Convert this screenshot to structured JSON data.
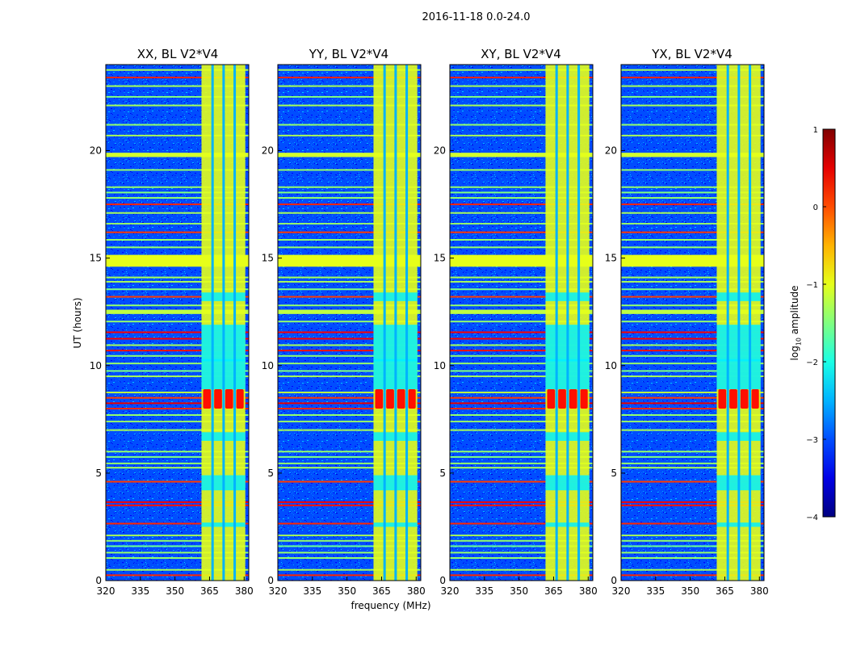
{
  "chart_data": {
    "type": "heatmap",
    "suptitle": "2016-11-18 0.0-24.0",
    "xlabel": "frequency (MHz)",
    "ylabel": "UT (hours)",
    "xlim": [
      320,
      382
    ],
    "ylim": [
      0,
      24
    ],
    "xticks": [
      320,
      335,
      350,
      365,
      380
    ],
    "xtick_labels": [
      "320",
      "335",
      "350",
      "365",
      "380"
    ],
    "yticks": [
      0,
      5,
      10,
      15,
      20
    ],
    "ytick_labels": [
      "0",
      "5",
      "10",
      "15",
      "20"
    ],
    "panels": [
      {
        "title": "XX, BL V2*V4"
      },
      {
        "title": "YY, BL V2*V4"
      },
      {
        "title": "XY, BL V2*V4"
      },
      {
        "title": "YX, BL V2*V4"
      }
    ],
    "colorbar": {
      "label_prefix": "log",
      "label_sub": "10",
      "label_suffix": " amplitude",
      "range": [
        -4,
        1
      ],
      "ticks": [
        1,
        0,
        -1,
        -2,
        -3,
        -4
      ],
      "tick_labels": [
        "1",
        "0",
        "−1",
        "−2",
        "−3",
        "−4"
      ],
      "colormap": "jet"
    },
    "features": {
      "band_freq_mhz": [
        361.5,
        380.5
      ],
      "band_gap_freqs_mhz": [
        366.3,
        371.1,
        375.9
      ],
      "band_level": -1.0,
      "background_level": -3.0,
      "horizontal_lines": [
        {
          "ut": 0.25,
          "level": 0.2
        },
        {
          "ut": 0.5,
          "level": -1.3
        },
        {
          "ut": 1.05,
          "level": -1.4
        },
        {
          "ut": 1.3,
          "level": -1.4
        },
        {
          "ut": 1.6,
          "level": -1.6
        },
        {
          "ut": 1.85,
          "level": -1.4
        },
        {
          "ut": 2.1,
          "level": -1.3
        },
        {
          "ut": 2.65,
          "level": 0.2
        },
        {
          "ut": 3.5,
          "level": 0.3
        },
        {
          "ut": 3.65,
          "level": 0.4
        },
        {
          "ut": 4.6,
          "level": 0.1
        },
        {
          "ut": 5.25,
          "level": -1.3
        },
        {
          "ut": 5.45,
          "level": -1.4
        },
        {
          "ut": 5.75,
          "level": -1.5
        },
        {
          "ut": 6.0,
          "level": -1.4
        },
        {
          "ut": 7.0,
          "level": -1.3
        },
        {
          "ut": 7.4,
          "level": -1.4
        },
        {
          "ut": 7.7,
          "level": -1.4
        },
        {
          "ut": 8.0,
          "level": 0.2
        },
        {
          "ut": 8.25,
          "level": 0.5
        },
        {
          "ut": 8.5,
          "level": 0.1
        },
        {
          "ut": 8.75,
          "level": -1.2
        },
        {
          "ut": 9.5,
          "level": -1.3
        },
        {
          "ut": 9.75,
          "level": -1.5
        },
        {
          "ut": 10.1,
          "level": -1.4
        },
        {
          "ut": 10.45,
          "level": -1.4
        },
        {
          "ut": 10.7,
          "level": 0.3
        },
        {
          "ut": 10.95,
          "level": -1.3
        },
        {
          "ut": 11.25,
          "level": 0.4
        },
        {
          "ut": 11.55,
          "level": 0.4
        },
        {
          "ut": 12.05,
          "level": -1.4
        },
        {
          "ut": 12.8,
          "level": -1.4
        },
        {
          "ut": 13.2,
          "level": 0.1
        },
        {
          "ut": 13.55,
          "level": -1.5
        },
        {
          "ut": 13.9,
          "level": -1.3
        },
        {
          "ut": 14.1,
          "level": -1.3
        },
        {
          "ut": 15.5,
          "level": -1.4
        },
        {
          "ut": 15.85,
          "level": -1.4
        },
        {
          "ut": 16.2,
          "level": 0.1
        },
        {
          "ut": 16.6,
          "level": -1.4
        },
        {
          "ut": 17.1,
          "level": -1.3
        },
        {
          "ut": 17.5,
          "level": 0.2
        },
        {
          "ut": 17.8,
          "level": -1.4
        },
        {
          "ut": 18.05,
          "level": -1.5
        },
        {
          "ut": 18.3,
          "level": -1.4
        },
        {
          "ut": 19.1,
          "level": -1.4
        },
        {
          "ut": 20.7,
          "level": -1.3
        },
        {
          "ut": 21.2,
          "level": -1.4
        },
        {
          "ut": 22.1,
          "level": -1.3
        },
        {
          "ut": 22.5,
          "level": -1.5
        },
        {
          "ut": 23.0,
          "level": -1.3
        },
        {
          "ut": 23.4,
          "level": 0.2
        },
        {
          "ut": 23.75,
          "level": -1.3
        }
      ],
      "wide_bands": [
        {
          "ut_start": 14.6,
          "ut_end": 15.15,
          "level": -1.0
        },
        {
          "ut_start": 19.7,
          "ut_end": 19.9,
          "level": -1.1
        },
        {
          "ut_start": 12.4,
          "ut_end": 12.6,
          "level": -1.2
        }
      ],
      "hot_blocks": {
        "ut_start": 8.0,
        "ut_end": 8.9,
        "level": 0.3
      },
      "band_gaps_ut": [
        [
          8.9,
          11.9
        ],
        [
          10.2,
          10.3
        ],
        [
          4.2,
          4.9
        ],
        [
          6.5,
          6.9
        ],
        [
          2.5,
          2.7
        ],
        [
          13.0,
          13.4
        ]
      ]
    }
  }
}
